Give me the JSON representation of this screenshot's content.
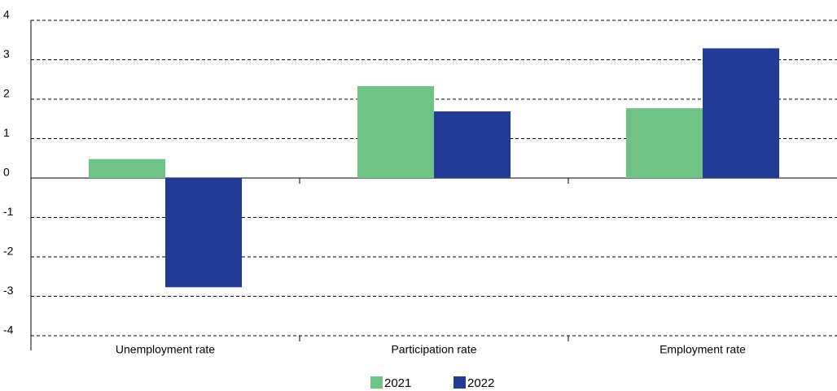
{
  "chart_data": {
    "type": "bar",
    "categories": [
      "Unemployment rate",
      "Participation rate",
      "Employment rate"
    ],
    "series": [
      {
        "name": "2021",
        "color": "#6fc386",
        "values": [
          0.48,
          2.33,
          1.77
        ]
      },
      {
        "name": "2022",
        "color": "#233b96",
        "values": [
          -2.77,
          1.69,
          3.29
        ]
      }
    ],
    "ylim": [
      -4,
      4
    ],
    "yticks": [
      -4,
      -3,
      -2,
      -1,
      0,
      1,
      2,
      3,
      4
    ],
    "grid": true
  }
}
